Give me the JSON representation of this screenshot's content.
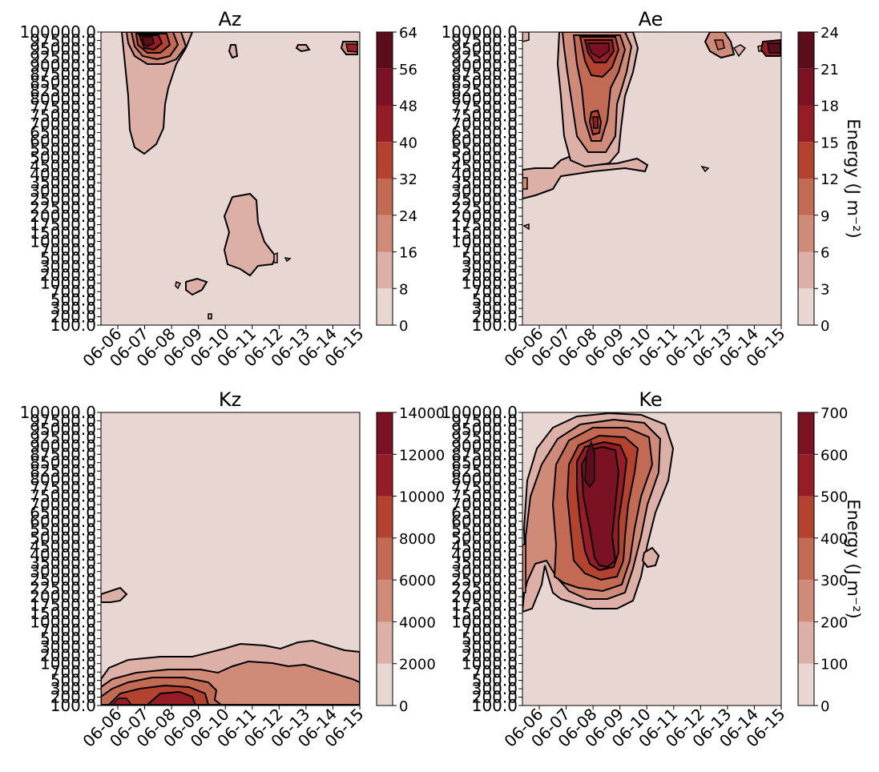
{
  "figure": {
    "colorbar_label": "Energy  (J m⁻²)"
  },
  "chart_data": [
    {
      "type": "contourf",
      "title": "Az",
      "xlabel": "",
      "ylabel": "",
      "x_ticks": [
        "06-06",
        "06-07",
        "06-08",
        "06-09",
        "06-10",
        "06-11",
        "06-12",
        "06-13",
        "06-14",
        "06-15"
      ],
      "y_ticks": [
        "100.0",
        "200.0",
        "300.0",
        "500.0",
        "700.0",
        "1000.0",
        "2000.0",
        "3000.0",
        "5000.0",
        "7000.0",
        "10000.0",
        "15000.0",
        "17500.0",
        "20000.0",
        "22500.0",
        "25000.0",
        "30000.0",
        "35000.0",
        "40000.0",
        "45000.0",
        "50000.0",
        "55000.0",
        "60000.0",
        "65000.0",
        "70000.0",
        "75000.0",
        "77500.0",
        "80000.0",
        "82500.0",
        "85000.0",
        "87500.0",
        "90000.0",
        "92500.0",
        "95000.0",
        "97500.0",
        "100000.0"
      ],
      "colorbar": {
        "levels": [
          0,
          8,
          16,
          24,
          32,
          40,
          48,
          56,
          64
        ],
        "tick_labels": [
          "0",
          "8",
          "16",
          "24",
          "32",
          "40",
          "48",
          "56",
          "64"
        ],
        "label": ""
      },
      "features": [
        {
          "desc": "upper-level maximum",
          "x": "06-07",
          "y": "95000.0",
          "peak": 56
        },
        {
          "desc": "mid-level region",
          "x": "06-10/06-11",
          "y": "7000.0-22500.0",
          "peak": 16
        }
      ]
    },
    {
      "type": "contourf",
      "title": "Ae",
      "xlabel": "",
      "ylabel": "",
      "x_ticks": [
        "06-06",
        "06-07",
        "06-08",
        "06-09",
        "06-10",
        "06-11",
        "06-12",
        "06-13",
        "06-14",
        "06-15"
      ],
      "y_ticks": [
        "100.0",
        "200.0",
        "300.0",
        "500.0",
        "700.0",
        "1000.0",
        "2000.0",
        "3000.0",
        "5000.0",
        "7000.0",
        "10000.0",
        "15000.0",
        "17500.0",
        "20000.0",
        "22500.0",
        "25000.0",
        "30000.0",
        "35000.0",
        "40000.0",
        "45000.0",
        "50000.0",
        "55000.0",
        "60000.0",
        "65000.0",
        "70000.0",
        "75000.0",
        "77500.0",
        "80000.0",
        "82500.0",
        "85000.0",
        "87500.0",
        "90000.0",
        "92500.0",
        "95000.0",
        "97500.0",
        "100000.0"
      ],
      "colorbar": {
        "levels": [
          0,
          3,
          6,
          9,
          12,
          15,
          18,
          21,
          24
        ],
        "tick_labels": [
          "0",
          "3",
          "6",
          "9",
          "12",
          "15",
          "18",
          "21",
          "24"
        ],
        "label": "Energy  (J m⁻²)"
      },
      "features": [
        {
          "desc": "upper-level maximum",
          "x": "06-08",
          "y": "92500.0",
          "peak": 18
        },
        {
          "desc": "upper-level cell",
          "x": "06-15",
          "y": "95000.0",
          "peak": 21
        }
      ]
    },
    {
      "type": "contourf",
      "title": "Kz",
      "xlabel": "",
      "ylabel": "",
      "x_ticks": [
        "06-06",
        "06-07",
        "06-08",
        "06-09",
        "06-10",
        "06-11",
        "06-12",
        "06-13",
        "06-14",
        "06-15"
      ],
      "y_ticks": [
        "100.0",
        "200.0",
        "300.0",
        "500.0",
        "700.0",
        "1000.0",
        "2000.0",
        "3000.0",
        "5000.0",
        "7000.0",
        "10000.0",
        "15000.0",
        "17500.0",
        "20000.0",
        "22500.0",
        "25000.0",
        "30000.0",
        "35000.0",
        "40000.0",
        "45000.0",
        "50000.0",
        "55000.0",
        "60000.0",
        "65000.0",
        "70000.0",
        "75000.0",
        "77500.0",
        "80000.0",
        "82500.0",
        "85000.0",
        "87500.0",
        "90000.0",
        "92500.0",
        "95000.0",
        "97500.0",
        "100000.0"
      ],
      "colorbar": {
        "levels": [
          0,
          2000,
          4000,
          6000,
          8000,
          10000,
          12000,
          14000
        ],
        "tick_labels": [
          "0",
          "2000",
          "4000",
          "6000",
          "8000",
          "10000",
          "12000",
          "14000"
        ],
        "label": ""
      },
      "features": [
        {
          "desc": "near-surface maximum",
          "x": "06-08/06-09",
          "y": "100.0-300.0",
          "peak": 8000
        }
      ]
    },
    {
      "type": "contourf",
      "title": "Ke",
      "xlabel": "",
      "ylabel": "",
      "x_ticks": [
        "06-06",
        "06-07",
        "06-08",
        "06-09",
        "06-10",
        "06-11",
        "06-12",
        "06-13",
        "06-14",
        "06-15"
      ],
      "y_ticks": [
        "100.0",
        "200.0",
        "300.0",
        "500.0",
        "700.0",
        "1000.0",
        "2000.0",
        "3000.0",
        "5000.0",
        "7000.0",
        "10000.0",
        "15000.0",
        "17500.0",
        "20000.0",
        "22500.0",
        "25000.0",
        "30000.0",
        "35000.0",
        "40000.0",
        "45000.0",
        "50000.0",
        "55000.0",
        "60000.0",
        "65000.0",
        "70000.0",
        "75000.0",
        "77500.0",
        "80000.0",
        "82500.0",
        "85000.0",
        "87500.0",
        "90000.0",
        "92500.0",
        "95000.0",
        "97500.0",
        "100000.0"
      ],
      "colorbar": {
        "levels": [
          0,
          100,
          200,
          300,
          400,
          500,
          600,
          700
        ],
        "tick_labels": [
          "0",
          "100",
          "200",
          "300",
          "400",
          "500",
          "600",
          "700"
        ],
        "label": "Energy  (J m⁻²)"
      },
      "features": [
        {
          "desc": "deep maximum",
          "x": "06-08",
          "y": "30000.0-92500.0",
          "peak": 600
        }
      ]
    }
  ],
  "palette": [
    "#e7d6d2",
    "#dcb0a6",
    "#cf8a78",
    "#c26a53",
    "#b3432f",
    "#961c25",
    "#7a1224",
    "#5c0d1b",
    "#3d0a0f"
  ]
}
